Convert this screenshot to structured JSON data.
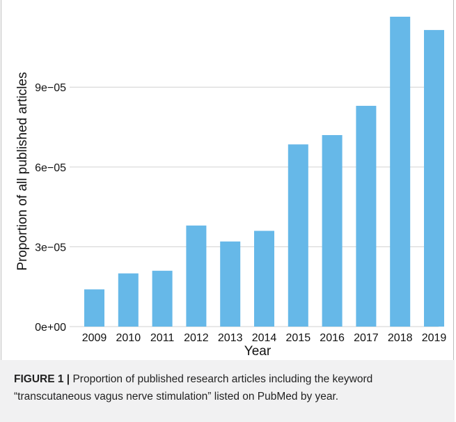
{
  "chart_data": {
    "type": "bar",
    "categories": [
      "2009",
      "2010",
      "2011",
      "2012",
      "2013",
      "2014",
      "2015",
      "2016",
      "2017",
      "2018",
      "2019"
    ],
    "values": [
      1.4e-05,
      2e-05,
      2.1e-05,
      3.8e-05,
      3.2e-05,
      3.6e-05,
      6.85e-05,
      7.2e-05,
      8.3e-05,
      0.0001165,
      0.0001115
    ],
    "xlabel": "Year",
    "ylabel": "Proportion of all published articles",
    "ylim": [
      0,
      0.0001165
    ],
    "yticks": [
      0,
      3e-05,
      6e-05,
      9e-05
    ],
    "ytick_labels": [
      "0e+00",
      "3e−05",
      "6e−05",
      "9e−05"
    ],
    "grid": "horizontal",
    "bar_color": "#66b8e8"
  },
  "caption": {
    "label": "FIGURE 1 |",
    "text": " Proportion of published research articles including the keyword “transcutaneous vagus nerve stimulation” listed on PubMed by year."
  }
}
